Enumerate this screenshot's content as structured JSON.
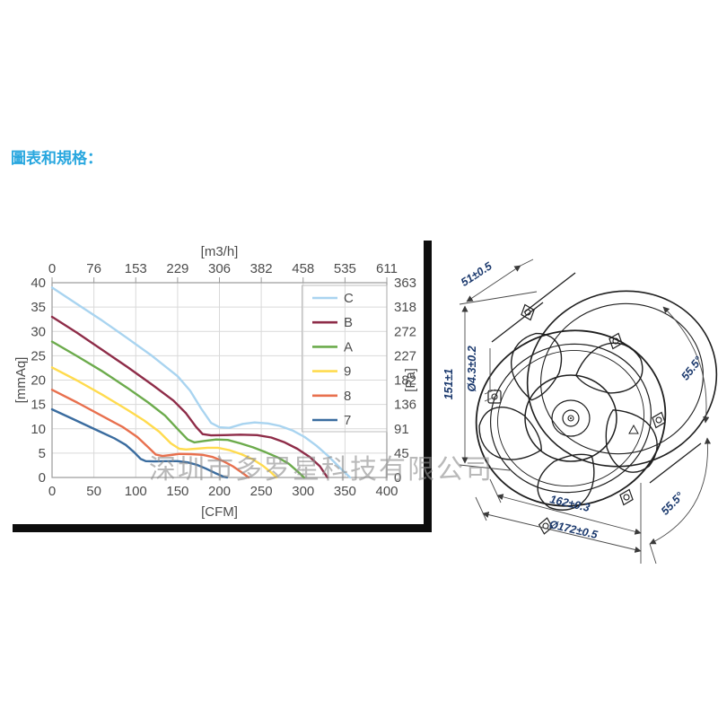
{
  "page": {
    "title": "圖表和規格：",
    "title_color": "#29a7df",
    "background": "#ffffff"
  },
  "watermark": {
    "text": "深圳市多罗星科技有限公司"
  },
  "chart_data": {
    "type": "line",
    "title": "",
    "grid": true,
    "legend_position": "top-right-inside",
    "top_axis": {
      "label": "[m3/h]",
      "ticks": [
        0,
        76,
        153,
        229,
        306,
        382,
        458,
        535,
        611
      ]
    },
    "bottom_axis": {
      "label": "[CFM]",
      "ticks": [
        0,
        50,
        100,
        150,
        200,
        250,
        300,
        350,
        400
      ],
      "range": [
        0,
        400
      ]
    },
    "left_axis": {
      "label": "[mmAq]",
      "ticks": [
        0,
        5,
        10,
        15,
        20,
        25,
        30,
        35,
        40
      ],
      "range": [
        0,
        40
      ]
    },
    "right_axis": {
      "label": "[Pa]",
      "ticks": [
        363,
        318,
        272,
        227,
        182,
        136,
        91,
        45,
        0
      ]
    },
    "series": [
      {
        "name": "C",
        "color": "#a9d4f0",
        "points": [
          [
            0,
            39
          ],
          [
            30,
            35.6
          ],
          [
            60,
            32.2
          ],
          [
            90,
            28.6
          ],
          [
            120,
            24.9
          ],
          [
            150,
            20.8
          ],
          [
            165,
            17.8
          ],
          [
            178,
            14.2
          ],
          [
            190,
            11.2
          ],
          [
            200,
            10.3
          ],
          [
            212,
            10.2
          ],
          [
            228,
            11
          ],
          [
            242,
            11.3
          ],
          [
            258,
            11.1
          ],
          [
            272,
            10.6
          ],
          [
            288,
            9.6
          ],
          [
            302,
            8.3
          ],
          [
            316,
            6.5
          ],
          [
            330,
            4.4
          ],
          [
            344,
            2
          ],
          [
            356,
            0
          ]
        ]
      },
      {
        "name": "B",
        "color": "#8e2c48",
        "points": [
          [
            0,
            33
          ],
          [
            30,
            29.7
          ],
          [
            60,
            26.2
          ],
          [
            90,
            22.7
          ],
          [
            120,
            19
          ],
          [
            145,
            15.8
          ],
          [
            160,
            13.2
          ],
          [
            172,
            10.4
          ],
          [
            180,
            8.9
          ],
          [
            190,
            8.65
          ],
          [
            205,
            8.7
          ],
          [
            225,
            8.8
          ],
          [
            245,
            8.7
          ],
          [
            262,
            8.2
          ],
          [
            278,
            7.2
          ],
          [
            293,
            5.9
          ],
          [
            308,
            4.2
          ],
          [
            320,
            2.3
          ],
          [
            329,
            0
          ]
        ]
      },
      {
        "name": "A",
        "color": "#6cab4c",
        "points": [
          [
            0,
            27.9
          ],
          [
            30,
            24.9
          ],
          [
            60,
            21.8
          ],
          [
            90,
            18.4
          ],
          [
            115,
            15.4
          ],
          [
            135,
            12.7
          ],
          [
            152,
            9.6
          ],
          [
            162,
            7.8
          ],
          [
            170,
            7.2
          ],
          [
            182,
            7.5
          ],
          [
            196,
            7.8
          ],
          [
            210,
            7.7
          ],
          [
            225,
            7
          ],
          [
            240,
            6.2
          ],
          [
            255,
            5.2
          ],
          [
            270,
            4.1
          ],
          [
            283,
            2.8
          ],
          [
            295,
            1
          ],
          [
            301,
            0
          ]
        ]
      },
      {
        "name": "9",
        "color": "#ffdb4e",
        "points": [
          [
            0,
            22.6
          ],
          [
            30,
            19.9
          ],
          [
            60,
            17
          ],
          [
            90,
            13.9
          ],
          [
            110,
            11.7
          ],
          [
            128,
            9.4
          ],
          [
            142,
            7
          ],
          [
            152,
            5.9
          ],
          [
            160,
            5.75
          ],
          [
            172,
            5.9
          ],
          [
            186,
            6.1
          ],
          [
            198,
            6.1
          ],
          [
            212,
            5.6
          ],
          [
            226,
            4.8
          ],
          [
            240,
            3.7
          ],
          [
            252,
            2.4
          ],
          [
            262,
            1
          ],
          [
            268,
            0
          ]
        ]
      },
      {
        "name": "8",
        "color": "#e8704e",
        "points": [
          [
            0,
            18
          ],
          [
            30,
            15.4
          ],
          [
            60,
            12.6
          ],
          [
            85,
            10.3
          ],
          [
            102,
            8.3
          ],
          [
            115,
            6.2
          ],
          [
            124,
            4.7
          ],
          [
            132,
            4.4
          ],
          [
            142,
            4.6
          ],
          [
            152,
            4.85
          ],
          [
            166,
            4.8
          ],
          [
            180,
            4.65
          ],
          [
            192,
            4.2
          ],
          [
            204,
            3.4
          ],
          [
            216,
            2.3
          ],
          [
            227,
            1
          ],
          [
            235,
            0
          ]
        ]
      },
      {
        "name": "7",
        "color": "#3a6c9f",
        "points": [
          [
            0,
            14
          ],
          [
            25,
            12
          ],
          [
            45,
            10.4
          ],
          [
            60,
            9.2
          ],
          [
            75,
            8
          ],
          [
            88,
            6.7
          ],
          [
            98,
            5.2
          ],
          [
            106,
            3.8
          ],
          [
            112,
            3.35
          ],
          [
            122,
            3.3
          ],
          [
            135,
            3.35
          ],
          [
            150,
            3.35
          ],
          [
            162,
            3.1
          ],
          [
            173,
            2.6
          ],
          [
            184,
            1.8
          ],
          [
            195,
            0.9
          ],
          [
            205,
            0.15
          ],
          [
            209,
            0
          ]
        ]
      }
    ]
  },
  "drawing": {
    "dim_depth": "51±0.5",
    "dim_height": "151±1",
    "dim_hole": "Ø4.3±0.2",
    "dim_angle_top": "55.5°",
    "dim_angle_bottom": "55.5°",
    "dim_bolt_spacing": "162±0.3",
    "dim_outer_diameter": "Ø172±0.5",
    "line_color": "#1f1f1f",
    "dim_color": "#1c3a6e"
  }
}
